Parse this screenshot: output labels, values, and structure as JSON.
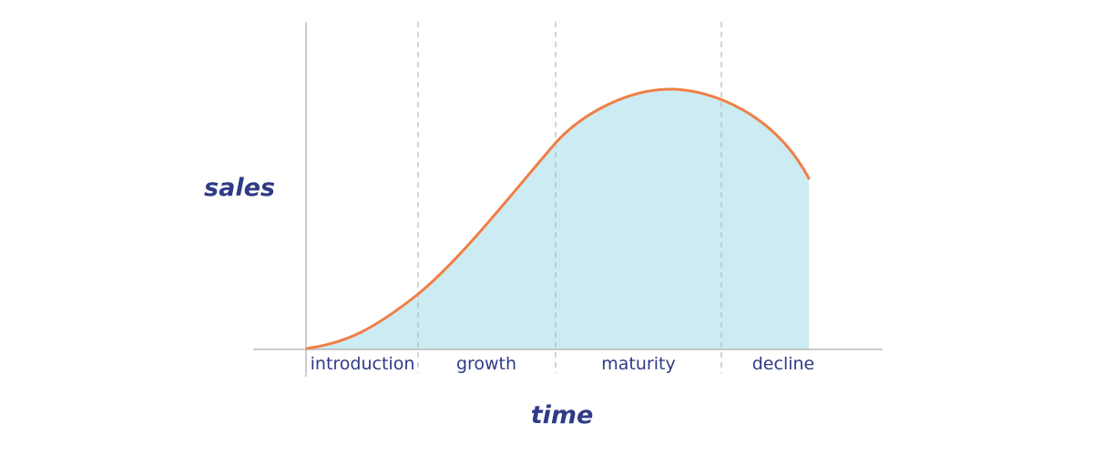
{
  "diagram": {
    "y_axis_label": "sales",
    "x_axis_label": "time",
    "stages": [
      {
        "label": "introduction"
      },
      {
        "label": "growth"
      },
      {
        "label": "maturity"
      },
      {
        "label": "decline"
      }
    ],
    "colors": {
      "curve": "#f07f45",
      "fill": "#cdebf2",
      "axis": "#b7b7b7",
      "divider": "#b7b7b7",
      "text": "#2f3b86"
    }
  }
}
